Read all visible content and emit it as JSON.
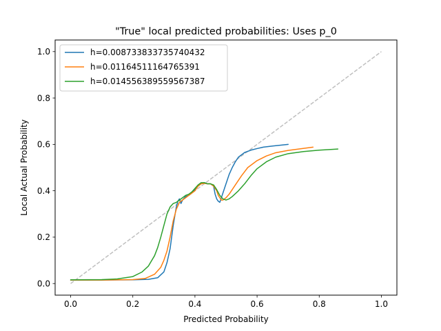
{
  "chart_data": {
    "type": "line",
    "title": "\"True\" local predicted probabilities: Uses p_0",
    "xlabel": "Predicted Probability",
    "ylabel": "Local Actual Probability",
    "xlim": [
      -0.05,
      1.05
    ],
    "ylim": [
      -0.05,
      1.05
    ],
    "xticks": [
      "0.0",
      "0.2",
      "0.4",
      "0.6",
      "0.8",
      "1.0"
    ],
    "yticks": [
      "0.0",
      "0.2",
      "0.4",
      "0.6",
      "0.8",
      "1.0"
    ],
    "grid": false,
    "legend_position": "top-left",
    "reference_line": {
      "x": [
        0,
        1
      ],
      "y": [
        0,
        1
      ],
      "color": "#bfbfbf",
      "style": "dashed"
    },
    "series": [
      {
        "name": "h=0.008733833735740432",
        "color": "#1f77b4",
        "x": [
          0.0,
          0.1,
          0.2,
          0.25,
          0.28,
          0.3,
          0.31,
          0.32,
          0.33,
          0.34,
          0.345,
          0.35,
          0.355,
          0.36,
          0.37,
          0.38,
          0.39,
          0.4,
          0.41,
          0.42,
          0.43,
          0.44,
          0.45,
          0.46,
          0.465,
          0.47,
          0.475,
          0.48,
          0.485,
          0.49,
          0.5,
          0.51,
          0.52,
          0.53,
          0.54,
          0.56,
          0.58,
          0.6,
          0.62,
          0.65,
          0.7
        ],
        "y": [
          0.015,
          0.015,
          0.016,
          0.018,
          0.025,
          0.05,
          0.09,
          0.15,
          0.25,
          0.33,
          0.355,
          0.365,
          0.345,
          0.36,
          0.375,
          0.38,
          0.39,
          0.405,
          0.42,
          0.43,
          0.435,
          0.43,
          0.43,
          0.42,
          0.385,
          0.365,
          0.355,
          0.35,
          0.37,
          0.39,
          0.43,
          0.47,
          0.5,
          0.525,
          0.545,
          0.565,
          0.575,
          0.582,
          0.588,
          0.593,
          0.6
        ]
      },
      {
        "name": "h=0.01164511164765391",
        "color": "#ff7f0e",
        "x": [
          0.0,
          0.1,
          0.2,
          0.24,
          0.27,
          0.29,
          0.3,
          0.31,
          0.32,
          0.33,
          0.34,
          0.35,
          0.36,
          0.37,
          0.38,
          0.39,
          0.4,
          0.41,
          0.42,
          0.43,
          0.44,
          0.45,
          0.46,
          0.47,
          0.475,
          0.48,
          0.485,
          0.49,
          0.5,
          0.51,
          0.52,
          0.53,
          0.55,
          0.57,
          0.6,
          0.63,
          0.66,
          0.7,
          0.74,
          0.78
        ],
        "y": [
          0.015,
          0.015,
          0.017,
          0.022,
          0.04,
          0.07,
          0.1,
          0.14,
          0.2,
          0.27,
          0.32,
          0.35,
          0.36,
          0.37,
          0.38,
          0.39,
          0.4,
          0.42,
          0.43,
          0.432,
          0.43,
          0.43,
          0.42,
          0.4,
          0.38,
          0.37,
          0.36,
          0.36,
          0.37,
          0.385,
          0.405,
          0.425,
          0.465,
          0.5,
          0.53,
          0.55,
          0.564,
          0.574,
          0.581,
          0.588
        ]
      },
      {
        "name": "h=0.014556389559567387",
        "color": "#2ca02c",
        "x": [
          0.0,
          0.1,
          0.15,
          0.2,
          0.23,
          0.25,
          0.27,
          0.28,
          0.29,
          0.3,
          0.31,
          0.32,
          0.33,
          0.34,
          0.35,
          0.36,
          0.37,
          0.38,
          0.39,
          0.4,
          0.41,
          0.42,
          0.43,
          0.44,
          0.45,
          0.46,
          0.47,
          0.48,
          0.49,
          0.5,
          0.51,
          0.52,
          0.54,
          0.56,
          0.58,
          0.6,
          0.63,
          0.66,
          0.7,
          0.75,
          0.8,
          0.86
        ],
        "y": [
          0.016,
          0.017,
          0.02,
          0.03,
          0.05,
          0.075,
          0.12,
          0.155,
          0.2,
          0.25,
          0.3,
          0.33,
          0.345,
          0.35,
          0.36,
          0.37,
          0.38,
          0.385,
          0.395,
          0.41,
          0.425,
          0.435,
          0.435,
          0.43,
          0.43,
          0.425,
          0.405,
          0.38,
          0.365,
          0.36,
          0.365,
          0.375,
          0.4,
          0.43,
          0.465,
          0.495,
          0.525,
          0.545,
          0.56,
          0.569,
          0.575,
          0.58
        ]
      }
    ]
  }
}
